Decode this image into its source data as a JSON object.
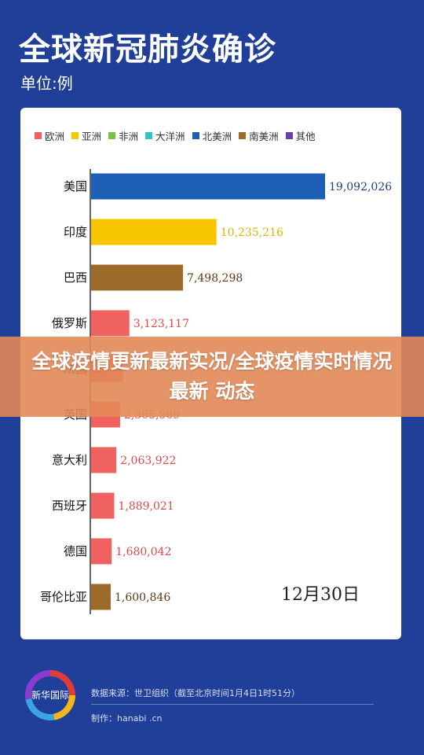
{
  "header": {
    "title": "全球新冠肺炎确诊",
    "unit": "单位:例"
  },
  "legend": [
    {
      "label": "欧洲",
      "color": "#f0625f"
    },
    {
      "label": "亚洲",
      "color": "#f7c600"
    },
    {
      "label": "非洲",
      "color": "#7cc242"
    },
    {
      "label": "大洋洲",
      "color": "#2ec4c4"
    },
    {
      "label": "北美洲",
      "color": "#1d5fb4"
    },
    {
      "label": "南美洲",
      "color": "#9c6b2a"
    },
    {
      "label": "其他",
      "color": "#6a3fb0"
    }
  ],
  "chart_data": {
    "type": "bar",
    "orientation": "horizontal",
    "categories": [
      "美国",
      "印度",
      "巴西",
      "俄罗斯",
      "法国",
      "英国",
      "意大利",
      "西班牙",
      "德国",
      "哥伦比亚"
    ],
    "values": [
      19092026,
      10235216,
      7498298,
      3123117,
      2600000,
      2365969,
      2063922,
      1889021,
      1680042,
      1600846
    ],
    "value_labels": [
      "19,092,026",
      "10,235,216",
      "7,498,298",
      "3,123,117",
      "",
      "2,365,969",
      "2,063,922",
      "1,889,021",
      "1,680,042",
      "1,600,846"
    ],
    "regions": [
      "北美洲",
      "亚洲",
      "南美洲",
      "欧洲",
      "欧洲",
      "欧洲",
      "欧洲",
      "欧洲",
      "欧洲",
      "南美洲"
    ],
    "region_colors": {
      "北美洲": "#1d5fb4",
      "亚洲": "#f7c600",
      "南美洲": "#9c6b2a",
      "欧洲": "#f0625f"
    },
    "label_colors": {
      "北美洲": "#1d3f7a",
      "亚洲": "#e0b400",
      "南美洲": "#5a3b10",
      "欧洲": "#e04848"
    },
    "xlim": [
      0,
      19092026
    ],
    "title": "全球新冠肺炎确诊",
    "date_note": "12月30日"
  },
  "date_label": "12月30日",
  "banner": {
    "text": "全球疫情更新最新实况/全球疫情实时情况最新 动态"
  },
  "footer": {
    "logo_text": "新华国际",
    "source": "数据来源：世卫组织（截至北京时间1月4日1时51分）",
    "credit": "制作：hanabi .cn"
  }
}
